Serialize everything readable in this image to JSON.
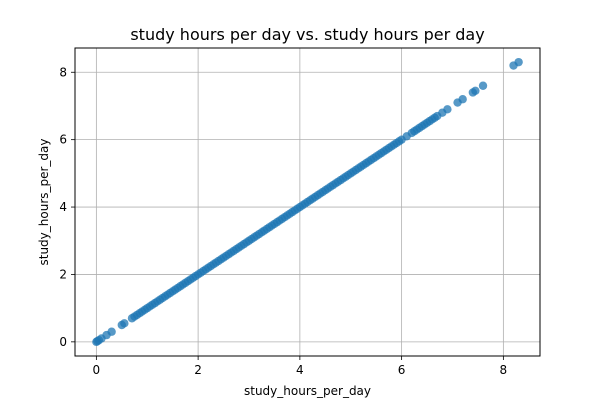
{
  "chart_data": {
    "type": "scatter",
    "title": "study hours per day vs. study hours per day",
    "xlabel": "study_hours_per_day",
    "ylabel": "study_hours_per_day",
    "xlim": [
      -0.42,
      8.72
    ],
    "ylim": [
      -0.42,
      8.72
    ],
    "xticks": [
      0,
      2,
      4,
      6,
      8
    ],
    "yticks": [
      0,
      2,
      4,
      6,
      8
    ],
    "grid": true,
    "point_color": "#1f77b4",
    "points": [
      [
        0.0,
        0.0
      ],
      [
        0.02,
        0.02
      ],
      [
        0.05,
        0.05
      ],
      [
        0.1,
        0.1
      ],
      [
        0.2,
        0.2
      ],
      [
        0.3,
        0.3
      ],
      [
        0.5,
        0.5
      ],
      [
        0.55,
        0.55
      ],
      [
        0.7,
        0.7
      ],
      [
        0.75,
        0.75
      ],
      [
        0.8,
        0.8
      ],
      [
        0.85,
        0.85
      ],
      [
        0.9,
        0.9
      ],
      [
        0.95,
        0.95
      ],
      [
        1.0,
        1.0
      ],
      [
        1.05,
        1.05
      ],
      [
        1.1,
        1.1
      ],
      [
        1.15,
        1.15
      ],
      [
        1.2,
        1.2
      ],
      [
        1.25,
        1.25
      ],
      [
        1.3,
        1.3
      ],
      [
        1.35,
        1.35
      ],
      [
        1.4,
        1.4
      ],
      [
        1.45,
        1.45
      ],
      [
        1.5,
        1.5
      ],
      [
        1.55,
        1.55
      ],
      [
        1.6,
        1.6
      ],
      [
        1.65,
        1.65
      ],
      [
        1.7,
        1.7
      ],
      [
        1.75,
        1.75
      ],
      [
        1.8,
        1.8
      ],
      [
        1.85,
        1.85
      ],
      [
        1.9,
        1.9
      ],
      [
        1.95,
        1.95
      ],
      [
        2.0,
        2.0
      ],
      [
        2.05,
        2.05
      ],
      [
        2.1,
        2.1
      ],
      [
        2.15,
        2.15
      ],
      [
        2.2,
        2.2
      ],
      [
        2.25,
        2.25
      ],
      [
        2.3,
        2.3
      ],
      [
        2.35,
        2.35
      ],
      [
        2.4,
        2.4
      ],
      [
        2.45,
        2.45
      ],
      [
        2.5,
        2.5
      ],
      [
        2.55,
        2.55
      ],
      [
        2.6,
        2.6
      ],
      [
        2.65,
        2.65
      ],
      [
        2.7,
        2.7
      ],
      [
        2.75,
        2.75
      ],
      [
        2.8,
        2.8
      ],
      [
        2.85,
        2.85
      ],
      [
        2.9,
        2.9
      ],
      [
        2.95,
        2.95
      ],
      [
        3.0,
        3.0
      ],
      [
        3.05,
        3.05
      ],
      [
        3.1,
        3.1
      ],
      [
        3.15,
        3.15
      ],
      [
        3.2,
        3.2
      ],
      [
        3.25,
        3.25
      ],
      [
        3.3,
        3.3
      ],
      [
        3.35,
        3.35
      ],
      [
        3.4,
        3.4
      ],
      [
        3.45,
        3.45
      ],
      [
        3.5,
        3.5
      ],
      [
        3.55,
        3.55
      ],
      [
        3.6,
        3.6
      ],
      [
        3.65,
        3.65
      ],
      [
        3.7,
        3.7
      ],
      [
        3.75,
        3.75
      ],
      [
        3.8,
        3.8
      ],
      [
        3.85,
        3.85
      ],
      [
        3.9,
        3.9
      ],
      [
        3.95,
        3.95
      ],
      [
        4.0,
        4.0
      ],
      [
        4.05,
        4.05
      ],
      [
        4.1,
        4.1
      ],
      [
        4.15,
        4.15
      ],
      [
        4.2,
        4.2
      ],
      [
        4.25,
        4.25
      ],
      [
        4.3,
        4.3
      ],
      [
        4.35,
        4.35
      ],
      [
        4.4,
        4.4
      ],
      [
        4.45,
        4.45
      ],
      [
        4.5,
        4.5
      ],
      [
        4.55,
        4.55
      ],
      [
        4.6,
        4.6
      ],
      [
        4.65,
        4.65
      ],
      [
        4.7,
        4.7
      ],
      [
        4.75,
        4.75
      ],
      [
        4.8,
        4.8
      ],
      [
        4.85,
        4.85
      ],
      [
        4.9,
        4.9
      ],
      [
        4.95,
        4.95
      ],
      [
        5.0,
        5.0
      ],
      [
        5.05,
        5.05
      ],
      [
        5.1,
        5.1
      ],
      [
        5.15,
        5.15
      ],
      [
        5.2,
        5.2
      ],
      [
        5.25,
        5.25
      ],
      [
        5.3,
        5.3
      ],
      [
        5.35,
        5.35
      ],
      [
        5.4,
        5.4
      ],
      [
        5.45,
        5.45
      ],
      [
        5.5,
        5.5
      ],
      [
        5.55,
        5.55
      ],
      [
        5.6,
        5.6
      ],
      [
        5.65,
        5.65
      ],
      [
        5.7,
        5.7
      ],
      [
        5.75,
        5.75
      ],
      [
        5.8,
        5.8
      ],
      [
        5.85,
        5.85
      ],
      [
        5.9,
        5.9
      ],
      [
        5.95,
        5.95
      ],
      [
        6.0,
        6.0
      ],
      [
        6.1,
        6.1
      ],
      [
        6.2,
        6.2
      ],
      [
        6.25,
        6.25
      ],
      [
        6.3,
        6.3
      ],
      [
        6.35,
        6.35
      ],
      [
        6.4,
        6.4
      ],
      [
        6.45,
        6.45
      ],
      [
        6.5,
        6.5
      ],
      [
        6.55,
        6.55
      ],
      [
        6.6,
        6.6
      ],
      [
        6.65,
        6.65
      ],
      [
        6.7,
        6.7
      ],
      [
        6.8,
        6.8
      ],
      [
        6.9,
        6.9
      ],
      [
        7.1,
        7.1
      ],
      [
        7.2,
        7.2
      ],
      [
        7.4,
        7.4
      ],
      [
        7.45,
        7.45
      ],
      [
        7.6,
        7.6
      ],
      [
        8.2,
        8.2
      ],
      [
        8.3,
        8.3
      ]
    ]
  }
}
